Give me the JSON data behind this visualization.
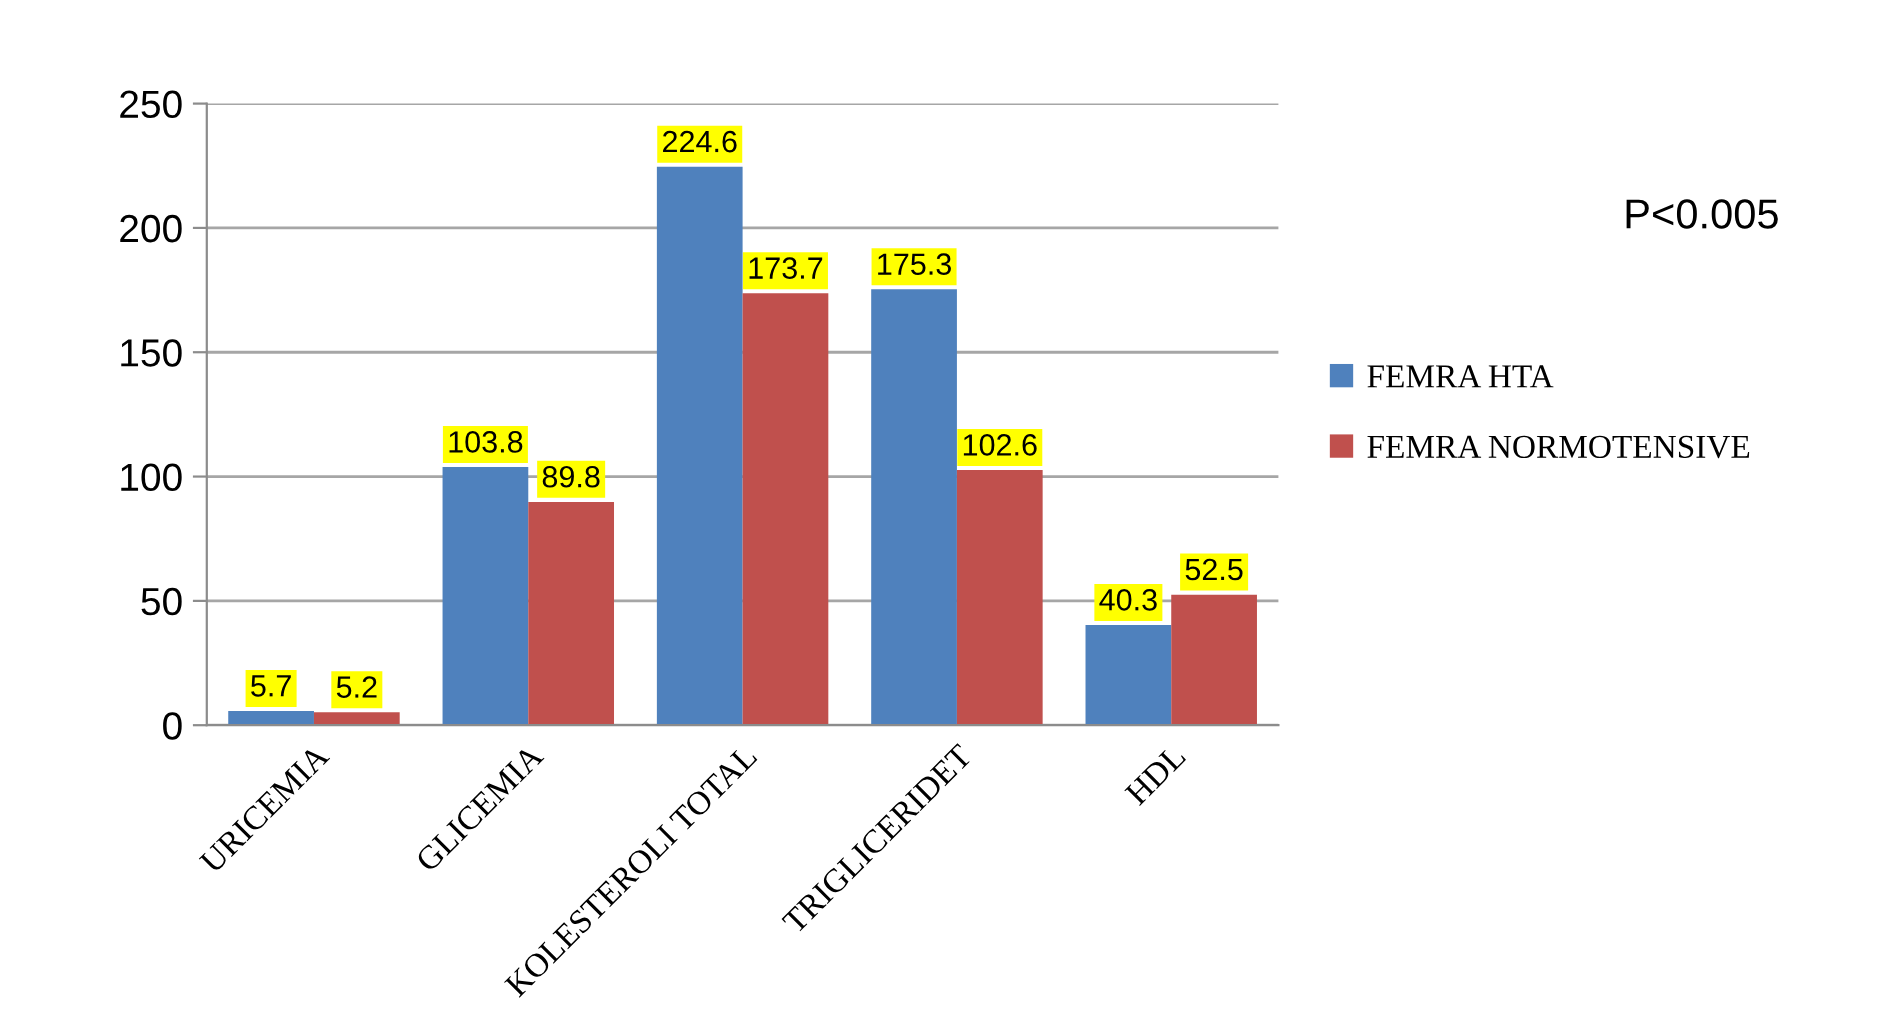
{
  "chart_data": {
    "type": "bar",
    "categories": [
      "URICEMIA",
      "GLICEMIA",
      "KOLESTEROLI TOTAL",
      "TRIGLICERIDET",
      "HDL"
    ],
    "series": [
      {
        "name": "FEMRA HTA",
        "color": "#4f81bd",
        "values": [
          5.7,
          103.8,
          224.6,
          175.3,
          40.3
        ]
      },
      {
        "name": "FEMRA NORMOTENSIVE",
        "color": "#c0504d",
        "values": [
          5.2,
          89.8,
          173.7,
          102.6,
          52.5
        ]
      }
    ],
    "ylim": [
      0,
      250
    ],
    "yticks": [
      0,
      50,
      100,
      150,
      200,
      250
    ],
    "grid": "y",
    "legend": "right",
    "data_labels": true,
    "annotations": [
      "P<0.005"
    ]
  }
}
